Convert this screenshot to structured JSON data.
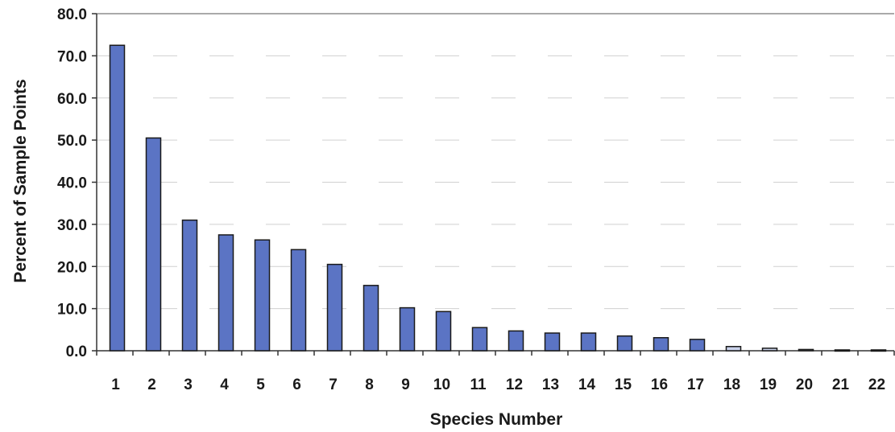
{
  "chart_data": {
    "type": "bar",
    "title": "",
    "xlabel": "Species Number",
    "ylabel": "Percent of Sample Points",
    "ylim": [
      0,
      80
    ],
    "yticks": [
      "0.0",
      "10.0",
      "20.0",
      "30.0",
      "40.0",
      "50.0",
      "60.0",
      "70.0",
      "80.0"
    ],
    "categories": [
      "1",
      "2",
      "3",
      "4",
      "5",
      "6",
      "7",
      "8",
      "9",
      "10",
      "11",
      "12",
      "13",
      "14",
      "15",
      "16",
      "17",
      "18",
      "19",
      "20",
      "21",
      "22"
    ],
    "values": [
      72.5,
      50.5,
      31.0,
      27.5,
      26.3,
      24.0,
      20.5,
      15.5,
      10.2,
      9.3,
      5.5,
      4.7,
      4.2,
      4.2,
      3.5,
      3.1,
      2.7,
      1.0,
      0.6,
      0.3,
      0.2,
      0.2
    ],
    "grid": true,
    "legend": "none",
    "colors": {
      "bar": "#5b74c4",
      "bar_faded": "#c9d1ea"
    }
  }
}
